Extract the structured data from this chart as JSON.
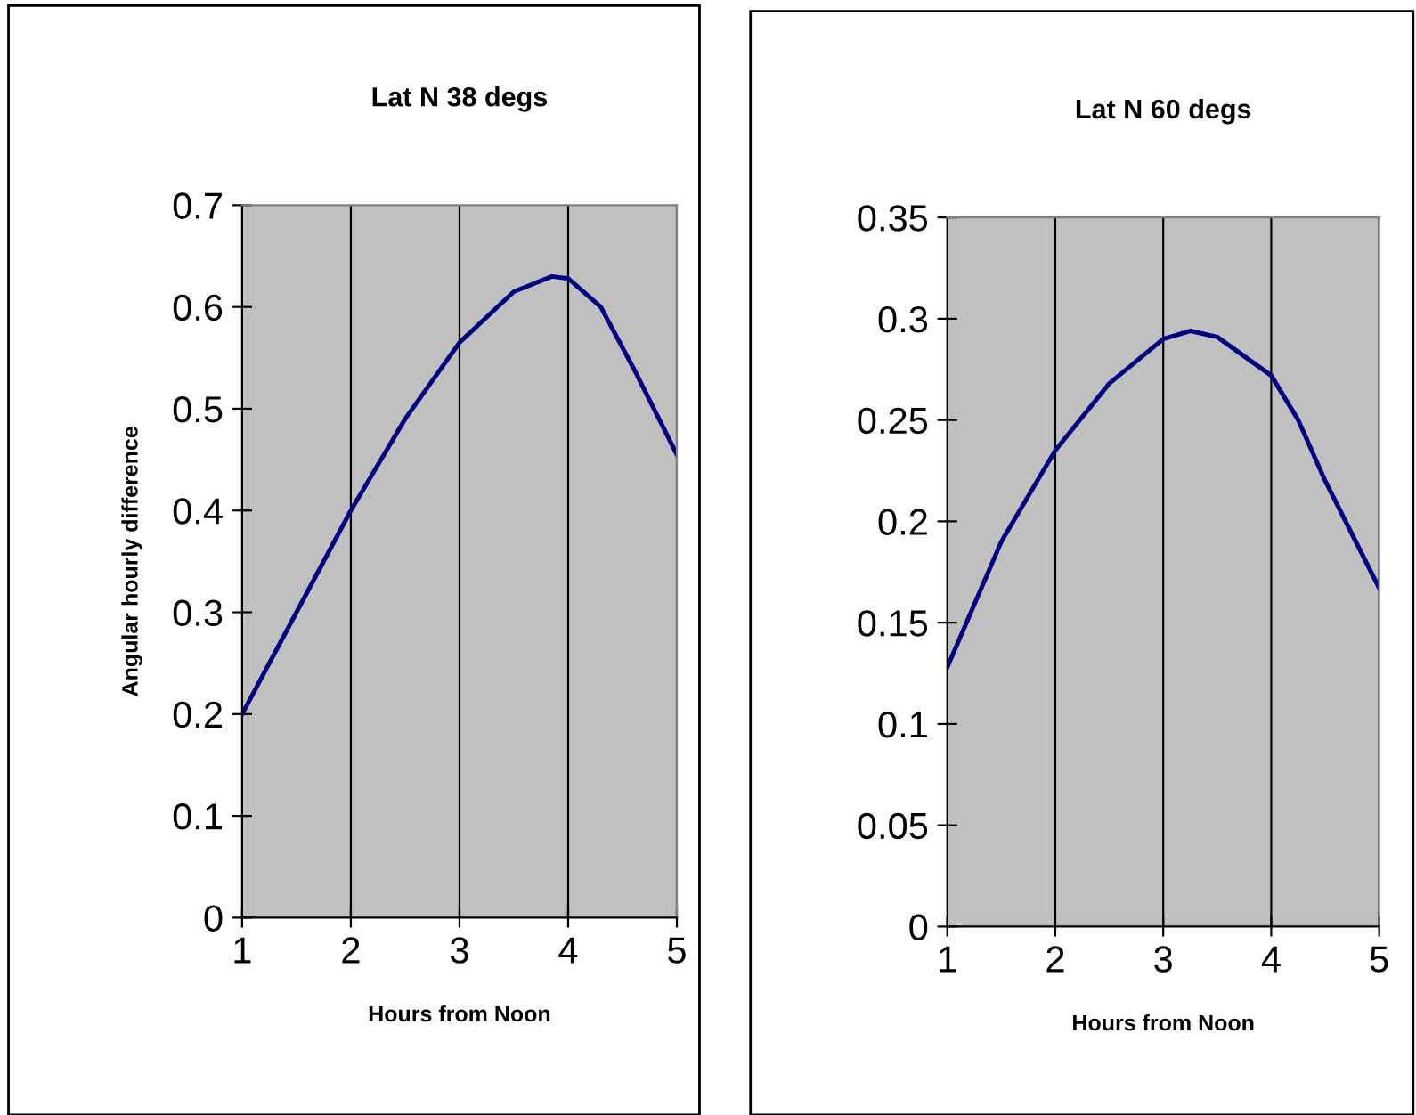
{
  "chart_data": [
    {
      "type": "line",
      "title": "Lat N 38 degs",
      "xlabel": "Hours from Noon",
      "ylabel": "Angular hourly difference",
      "xlim": [
        1,
        5
      ],
      "xticks": [
        1,
        2,
        3,
        4,
        5
      ],
      "ylim": [
        0,
        0.7
      ],
      "yticks": [
        0,
        0.1,
        0.2,
        0.3,
        0.4,
        0.5,
        0.6,
        0.7
      ],
      "grid": "x",
      "series": [
        {
          "color": "#000080",
          "x": [
            1,
            1.5,
            2,
            2.5,
            3,
            3.5,
            3.85,
            4,
            4.3,
            4.6,
            5
          ],
          "values": [
            0.2,
            0.3,
            0.4,
            0.49,
            0.565,
            0.615,
            0.63,
            0.628,
            0.6,
            0.54,
            0.455
          ]
        }
      ]
    },
    {
      "type": "line",
      "title": "Lat N 60 degs",
      "xlabel": "Hours from Noon",
      "xlim": [
        1,
        5
      ],
      "xticks": [
        1,
        2,
        3,
        4,
        5
      ],
      "ylim": [
        0,
        0.35
      ],
      "yticks": [
        0,
        0.05,
        0.1,
        0.15,
        0.2,
        0.25,
        0.3,
        0.35
      ],
      "grid": "x",
      "series": [
        {
          "color": "#000080",
          "x": [
            1,
            1.5,
            2,
            2.5,
            3,
            3.25,
            3.5,
            4,
            4.25,
            4.5,
            5
          ],
          "values": [
            0.128,
            0.19,
            0.235,
            0.268,
            0.29,
            0.294,
            0.291,
            0.272,
            0.25,
            0.22,
            0.167
          ]
        }
      ]
    }
  ]
}
